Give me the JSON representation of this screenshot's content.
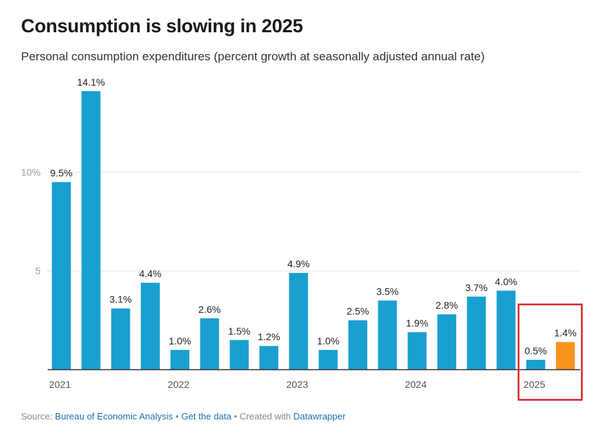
{
  "header": {
    "title": "Consumption is slowing in 2025",
    "subtitle": "Personal consumption expenditures (percent growth at seasonally adjusted annual rate)"
  },
  "footer": {
    "source_prefix": "Source: ",
    "source_link": "Bureau of Economic Analysis",
    "sep1": " • ",
    "data_link": "Get the data",
    "sep2": " • Created with ",
    "tool_link": "Datawrapper"
  },
  "chart_data": {
    "type": "bar",
    "title": "Consumption is slowing in 2025",
    "subtitle": "Personal consumption expenditures (percent growth at seasonally adjusted annual rate)",
    "xlabel": "",
    "ylabel": "",
    "ylim": [
      0,
      14.1
    ],
    "y_ticks": [
      {
        "value": 10,
        "label": "10%"
      },
      {
        "value": 5,
        "label": "5"
      }
    ],
    "x_year_labels": [
      "2021",
      "2022",
      "2023",
      "2024",
      "2025"
    ],
    "year_label_at_bar": [
      0,
      4,
      8,
      12,
      16
    ],
    "values": [
      9.5,
      14.1,
      3.1,
      4.4,
      1.0,
      2.6,
      1.5,
      1.2,
      4.9,
      1.0,
      2.5,
      3.5,
      1.9,
      2.8,
      3.7,
      4.0,
      0.5,
      1.4
    ],
    "labels": [
      "9.5%",
      "14.1%",
      "3.1%",
      "4.4%",
      "1.0%",
      "2.6%",
      "1.5%",
      "1.2%",
      "4.9%",
      "1.0%",
      "2.5%",
      "3.5%",
      "1.9%",
      "2.8%",
      "3.7%",
      "4.0%",
      "0.5%",
      "1.4%"
    ],
    "highlight_index": 17,
    "boxed_indices": [
      16,
      17
    ],
    "colors": {
      "bar": "#1a9fd1",
      "highlight": "#f7941d",
      "box": "#d9252a",
      "grid": "#e6e6e6",
      "axis": "#333333"
    }
  }
}
